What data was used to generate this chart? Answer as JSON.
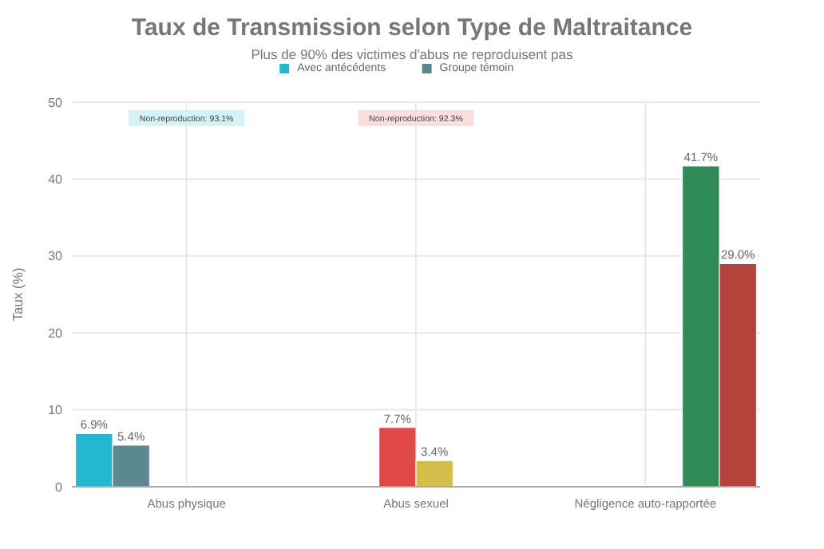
{
  "chart_data": {
    "type": "bar",
    "title": "Taux de Transmission selon Type de Maltraitance",
    "subtitle": "Plus de 90% des victimes d'abus ne reproduisent pas",
    "ylabel": "Taux (%)",
    "categories": [
      "Abus physique",
      "Abus sexuel",
      "Négligence auto-rapportée"
    ],
    "series": [
      {
        "name": "Avec antécédents",
        "color": "#22b8cf",
        "values": [
          6.9,
          null,
          null
        ],
        "value_labels": [
          "6.9%",
          null,
          null
        ]
      },
      {
        "name": "Groupe témoin",
        "color": "#5c8790",
        "values": [
          5.4,
          null,
          null
        ],
        "value_labels": [
          "5.4%",
          null,
          null
        ]
      },
      {
        "color": "#e04848",
        "values": [
          null,
          7.7,
          null
        ],
        "value_labels": [
          null,
          "7.7%",
          null
        ]
      },
      {
        "color": "#d4bd4a",
        "values": [
          null,
          3.4,
          null
        ],
        "value_labels": [
          null,
          "3.4%",
          null
        ]
      },
      {
        "color": "#2e8b57",
        "values": [
          null,
          null,
          41.7
        ],
        "value_labels": [
          null,
          null,
          "41.7%"
        ]
      },
      {
        "color": "#b5433d",
        "values": [
          null,
          null,
          29.0
        ],
        "value_labels": [
          null,
          null,
          "29.0%"
        ]
      }
    ],
    "annotations": [
      "Non-reproduction: 93.1%",
      "Non-reproduction: 92.3%"
    ],
    "ylim": [
      0,
      50
    ],
    "yticks": [
      0,
      10,
      20,
      30,
      40,
      50
    ],
    "grid": true,
    "legend": "top"
  }
}
